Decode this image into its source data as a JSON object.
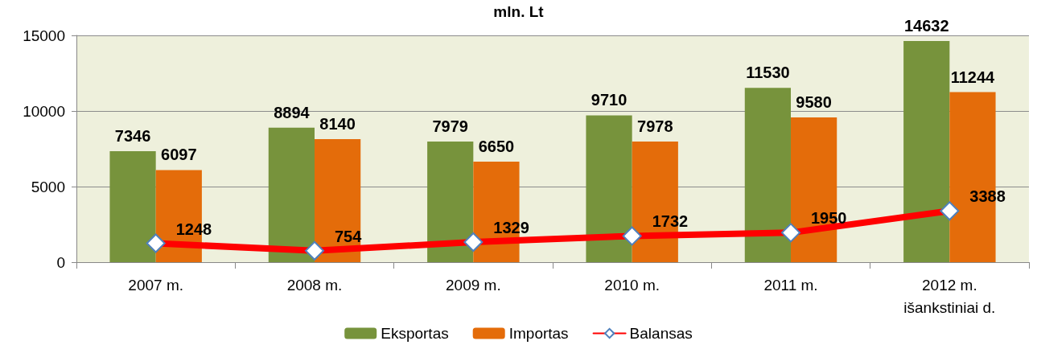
{
  "chart_data": {
    "type": "bar",
    "title": "mln. Lt",
    "categories": [
      "2007 m.",
      "2008 m.",
      "2009 m.",
      "2010 m.",
      "2011 m.",
      "2012 m.\nišankstiniai d."
    ],
    "series": [
      {
        "name": "Eksportas",
        "color": "#77933c",
        "values": [
          7346,
          8894,
          7979,
          9710,
          11530,
          14632
        ]
      },
      {
        "name": "Importas",
        "color": "#e46c0a",
        "values": [
          6097,
          8140,
          6650,
          7978,
          9580,
          11244
        ]
      },
      {
        "name": "Balansas",
        "type": "line",
        "color": "#ff0000",
        "values": [
          1248,
          754,
          1329,
          1732,
          1950,
          3388
        ]
      }
    ],
    "ylim": [
      0,
      15000
    ],
    "yticks": [
      0,
      5000,
      10000,
      15000
    ],
    "grid": "y",
    "legend": "bottom",
    "data_labels": true,
    "marker": "diamond"
  }
}
